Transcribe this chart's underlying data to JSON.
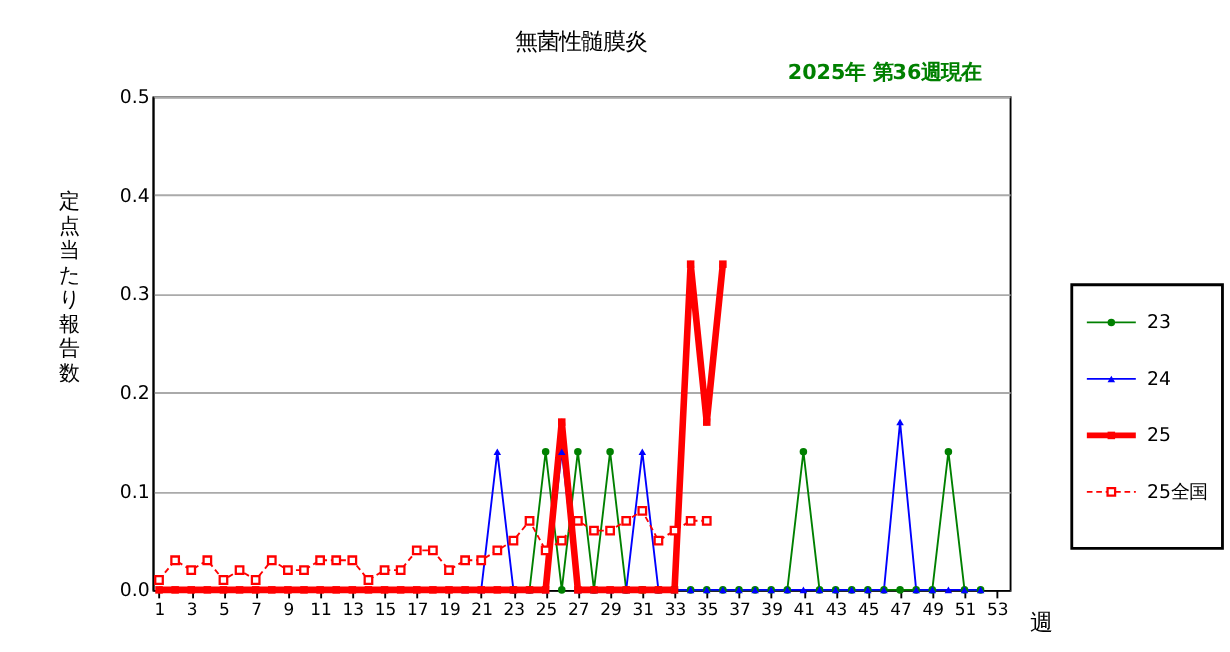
{
  "chart_data": {
    "type": "line",
    "title": "無菌性髄膜炎",
    "annotations": [
      "2025年 第36週現在"
    ],
    "xlabel": "週",
    "ylabel": "定点当たり報告数",
    "x": [
      1,
      2,
      3,
      4,
      5,
      6,
      7,
      8,
      9,
      10,
      11,
      12,
      13,
      14,
      15,
      16,
      17,
      18,
      19,
      20,
      21,
      22,
      23,
      24,
      25,
      26,
      27,
      28,
      29,
      30,
      31,
      32,
      33,
      34,
      35,
      36,
      37,
      38,
      39,
      40,
      41,
      42,
      43,
      44,
      45,
      46,
      47,
      48,
      49,
      50,
      51,
      52
    ],
    "xlim": [
      0.6,
      53.8
    ],
    "xticks": [
      1,
      3,
      5,
      7,
      9,
      11,
      13,
      15,
      17,
      19,
      21,
      23,
      25,
      27,
      29,
      31,
      33,
      35,
      37,
      39,
      41,
      43,
      45,
      47,
      49,
      51,
      53
    ],
    "ylim": [
      0,
      0.5
    ],
    "yticks": [
      {
        "value": 0,
        "label": "0.0"
      },
      {
        "value": 0.1,
        "label": "0.1"
      },
      {
        "value": 0.2,
        "label": "0.2"
      },
      {
        "value": 0.3,
        "label": "0.3"
      },
      {
        "value": 0.4,
        "label": "0.4"
      },
      {
        "value": 0.5,
        "label": "0.5"
      }
    ],
    "grid": "y",
    "legend": "right",
    "series": [
      {
        "name": "23",
        "color": "#008000",
        "marker": "circle",
        "line_style": "solid",
        "values": [
          null,
          null,
          null,
          null,
          null,
          null,
          null,
          null,
          null,
          null,
          null,
          null,
          null,
          null,
          null,
          null,
          null,
          null,
          null,
          null,
          null,
          null,
          0,
          0,
          0.14,
          0,
          0.14,
          0,
          0.14,
          0,
          0,
          0,
          0,
          0,
          0,
          0,
          0,
          0,
          0,
          0,
          0.14,
          0,
          0,
          0,
          0,
          0,
          0,
          0,
          0,
          0.14,
          0,
          0
        ]
      },
      {
        "name": "24",
        "color": "#0000ff",
        "marker": "triangle",
        "line_style": "solid",
        "values": [
          null,
          null,
          null,
          null,
          null,
          null,
          null,
          null,
          null,
          null,
          null,
          null,
          null,
          null,
          null,
          null,
          null,
          null,
          null,
          0,
          0,
          0.14,
          0,
          0,
          0,
          0.14,
          0,
          0,
          0,
          0,
          0.14,
          0,
          0,
          0,
          0,
          0,
          0,
          0,
          0,
          0,
          0,
          0,
          0,
          0,
          0,
          0,
          0.17,
          0,
          0,
          0,
          0,
          0
        ]
      },
      {
        "name": "25",
        "color": "#ff0000",
        "marker": "square",
        "line_style": "solid",
        "values": [
          0,
          0,
          0,
          0,
          0,
          0,
          0,
          0,
          0,
          0,
          0,
          0,
          0,
          0,
          0,
          0,
          0,
          0,
          0,
          0,
          0,
          0,
          0,
          0,
          0,
          0.17,
          0,
          0,
          0,
          0,
          0,
          0,
          0,
          0.33,
          0.17,
          0.33,
          null,
          null,
          null,
          null,
          null,
          null,
          null,
          null,
          null,
          null,
          null,
          null,
          null,
          null,
          null,
          null
        ]
      },
      {
        "name": "25全国",
        "color": "#ff0000",
        "marker": "square-open",
        "line_style": "dashed",
        "values": [
          0.01,
          0.03,
          0.02,
          0.03,
          0.01,
          0.02,
          0.01,
          0.03,
          0.02,
          0.02,
          0.03,
          0.03,
          0.03,
          0.01,
          0.02,
          0.02,
          0.04,
          0.04,
          0.02,
          0.03,
          0.03,
          0.04,
          0.05,
          0.07,
          0.04,
          0.05,
          0.07,
          0.06,
          0.06,
          0.07,
          0.08,
          0.05,
          0.06,
          0.07,
          0.07,
          null,
          null,
          null,
          null,
          null,
          null,
          null,
          null,
          null,
          null,
          null,
          null,
          null,
          null,
          null,
          null,
          null
        ]
      }
    ]
  }
}
